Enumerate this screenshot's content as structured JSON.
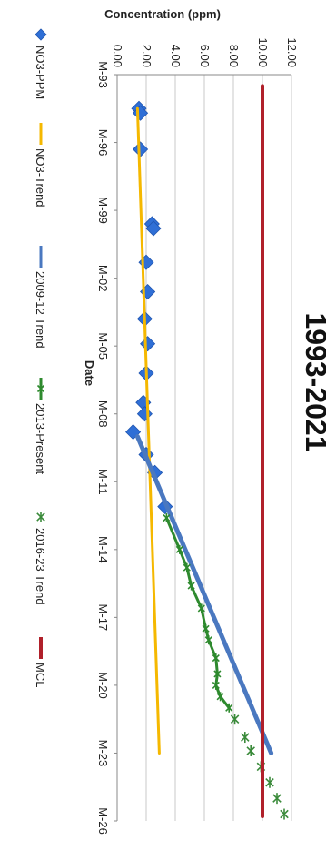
{
  "chart_data": {
    "type": "line",
    "orientation_note": "",
    "title": "1993-2021",
    "xlabel": "Date",
    "ylabel": "Concentration (ppm)",
    "x_ticks": [
      "M-93",
      "M-96",
      "M-99",
      "M-02",
      "M-05",
      "M-08",
      "M-11",
      "M-14",
      "M-17",
      "M-20",
      "M-23",
      "M-26"
    ],
    "y_ticks": [
      "0.00",
      "2.00",
      "4.00",
      "6.00",
      "8.00",
      "10.00",
      "12.00"
    ],
    "xlim": [
      1993,
      2026
    ],
    "ylim": [
      0,
      12
    ],
    "grid": true,
    "legend_position": "bottom",
    "series": [
      {
        "name": "NO3-PPM",
        "kind": "marker-diamond",
        "color": "#2f6fd6",
        "x": [
          1994.5,
          1994.7,
          1996.3,
          1999.6,
          1999.8,
          2001.3,
          2002.6,
          2003.8,
          2004.9,
          2006.2,
          2007.5,
          2008.0,
          2008.8,
          2009.8,
          2010.6,
          2012.1
        ],
        "y": [
          1.5,
          1.6,
          1.6,
          2.4,
          2.5,
          2.0,
          2.1,
          1.9,
          2.1,
          2.0,
          1.8,
          1.9,
          1.1,
          2.0,
          2.6,
          3.3
        ]
      },
      {
        "name": "NO3-Trend",
        "kind": "line",
        "color": "#f5b800",
        "x": [
          1994.5,
          2023.0
        ],
        "y": [
          1.4,
          2.9
        ]
      },
      {
        "name": "2009-12 Trend",
        "kind": "line",
        "color": "#4a78c0",
        "x": [
          2009.0,
          2023.0
        ],
        "y": [
          1.4,
          10.6
        ]
      },
      {
        "name": "2013-Present",
        "kind": "line-marker",
        "color": "#2e8a2e",
        "x": [
          2012.6,
          2014.0,
          2014.8,
          2015.6,
          2016.6,
          2017.5,
          2018.0,
          2018.8,
          2019.5,
          2020.0,
          2020.5,
          2021.0
        ],
        "y": [
          3.4,
          4.3,
          4.8,
          5.1,
          5.8,
          6.1,
          6.3,
          6.8,
          6.9,
          6.8,
          7.1,
          7.7
        ]
      },
      {
        "name": "2016-23 Trend",
        "kind": "marker-star",
        "color": "#3a8a3a",
        "x": [
          2021.5,
          2022.3,
          2022.9,
          2023.6,
          2024.3,
          2025.0,
          2025.7
        ],
        "y": [
          8.1,
          8.8,
          9.2,
          9.9,
          10.5,
          11.0,
          11.5
        ]
      },
      {
        "name": "MCL",
        "kind": "line",
        "color": "#b0202a",
        "x": [
          1993.5,
          2025.8
        ],
        "y": [
          10.0,
          10.0
        ]
      }
    ]
  }
}
